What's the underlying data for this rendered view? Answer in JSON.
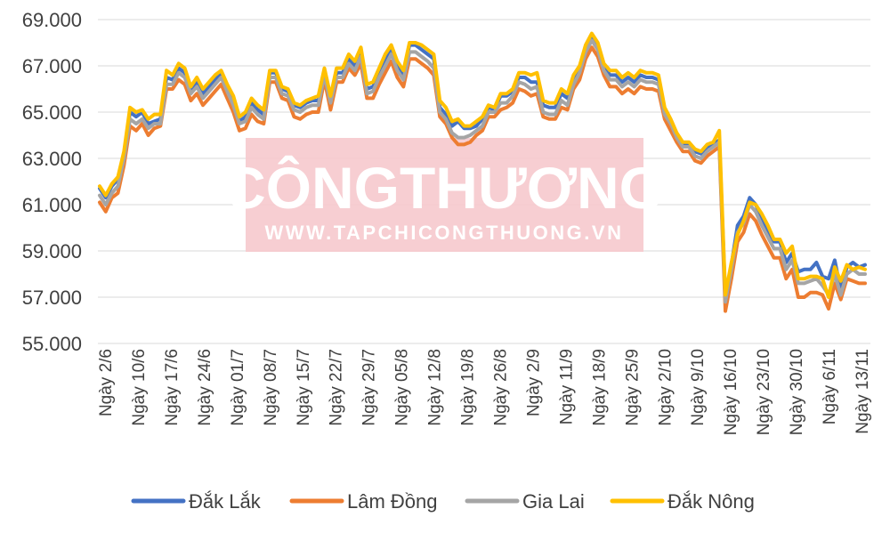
{
  "chart_data": {
    "type": "line",
    "title": "",
    "xlabel": "",
    "ylabel": "",
    "ylim": [
      55000,
      69000
    ],
    "y_ticks": [
      "55.000",
      "57.000",
      "59.000",
      "61.000",
      "63.000",
      "65.000",
      "67.000",
      "69.000"
    ],
    "x_tick_labels": [
      "Ngày 2/6",
      "Ngày 10/6",
      "Ngày 17/6",
      "Ngày 24/6",
      "Ngày 01/7",
      "Ngày 08/7",
      "Ngày 15/7",
      "Ngày 22/7",
      "Ngày 29/7",
      "Ngày 05/8",
      "Ngày 12/8",
      "Ngày 19/8",
      "Ngày 26/8",
      "Ngày 2/9",
      "Ngày 11/9",
      "Ngày 18/9",
      "Ngày 25/9",
      "Ngày 2/10",
      "Ngày 9/10",
      "Ngày 16/10",
      "Ngày 23/10",
      "Ngày 30/10",
      "Ngày 6/11",
      "Ngày 13/11"
    ],
    "grid": "horizontal",
    "legend_position": "bottom",
    "series": [
      {
        "name": "Đắk Lắk",
        "color": "#4472c4",
        "values": [
          61700,
          61300,
          61800,
          62100,
          63200,
          65000,
          64800,
          65000,
          64500,
          64600,
          64700,
          66500,
          66400,
          66900,
          66700,
          66000,
          66300,
          65800,
          66100,
          66400,
          66700,
          66100,
          65500,
          64600,
          64800,
          65400,
          65100,
          64900,
          66700,
          66700,
          66000,
          65900,
          65300,
          65200,
          65400,
          65500,
          65500,
          66800,
          65600,
          66700,
          66700,
          67300,
          67000,
          67600,
          66000,
          66100,
          66700,
          67300,
          67800,
          67000,
          66600,
          67900,
          67900,
          67700,
          67500,
          67300,
          65200,
          64900,
          64400,
          64600,
          64300,
          64300,
          64400,
          64700,
          65200,
          65100,
          65700,
          65700,
          65900,
          66500,
          66500,
          66300,
          66300,
          65300,
          65200,
          65200,
          65800,
          65600,
          66500,
          66900,
          67800,
          68300,
          67900,
          67000,
          66600,
          66600,
          66300,
          66500,
          66300,
          66600,
          66500,
          66500,
          66400,
          65000,
          64600,
          64000,
          63600,
          63600,
          63300,
          63200,
          63500,
          63600,
          63800,
          57000,
          58400,
          60100,
          60500,
          61300,
          61000,
          60400,
          59900,
          59400,
          59400,
          58500,
          58900,
          58100,
          58200,
          58200,
          58500,
          57900,
          57800,
          58600,
          57300,
          58300,
          58500,
          58300,
          58400
        ]
      },
      {
        "name": "Lâm Đồng",
        "color": "#ed7d31",
        "values": [
          61100,
          60700,
          61300,
          61500,
          62700,
          64400,
          64200,
          64500,
          64000,
          64300,
          64400,
          66000,
          66000,
          66400,
          66200,
          65500,
          65800,
          65300,
          65600,
          65900,
          66200,
          65600,
          65000,
          64200,
          64300,
          64900,
          64600,
          64500,
          66300,
          66300,
          65600,
          65500,
          64800,
          64700,
          64900,
          65000,
          65000,
          66400,
          65100,
          66300,
          66300,
          66900,
          66600,
          67100,
          65600,
          65600,
          66200,
          66700,
          67200,
          66500,
          66100,
          67300,
          67300,
          67100,
          66900,
          66600,
          64800,
          64500,
          63900,
          63600,
          63600,
          63700,
          64000,
          64200,
          64800,
          64800,
          65100,
          65200,
          65400,
          66000,
          65900,
          65700,
          65800,
          64800,
          64700,
          64700,
          65200,
          65100,
          66000,
          66400,
          67300,
          67800,
          67400,
          66600,
          66100,
          66100,
          65800,
          66000,
          65800,
          66100,
          66000,
          66000,
          65900,
          64700,
          64200,
          63700,
          63300,
          63300,
          62900,
          62800,
          63100,
          63300,
          63500,
          56400,
          57800,
          59400,
          59800,
          60600,
          60300,
          59700,
          59200,
          58700,
          58700,
          57800,
          58200,
          57000,
          57000,
          57200,
          57200,
          57100,
          56500,
          57600,
          56900,
          57800,
          57700,
          57600,
          57600
        ]
      },
      {
        "name": "Gia Lai",
        "color": "#a5a5a5",
        "values": [
          61400,
          61000,
          61500,
          61800,
          63000,
          64700,
          64500,
          64700,
          64300,
          64500,
          64500,
          66200,
          66200,
          66700,
          66500,
          65800,
          66100,
          65600,
          65900,
          66200,
          66500,
          65900,
          65300,
          64500,
          64600,
          65200,
          64900,
          64700,
          66500,
          66500,
          65800,
          65700,
          65100,
          65000,
          65200,
          65300,
          65300,
          66600,
          65400,
          66500,
          66500,
          67100,
          66800,
          67400,
          65800,
          65900,
          66500,
          67000,
          67500,
          66800,
          66400,
          67600,
          67600,
          67400,
          67200,
          66900,
          65000,
          64700,
          64100,
          63900,
          63900,
          64000,
          64200,
          64400,
          65000,
          65000,
          65400,
          65400,
          65700,
          66300,
          66200,
          66000,
          66100,
          65000,
          64900,
          64900,
          65500,
          65300,
          66200,
          66700,
          67600,
          68100,
          67700,
          66800,
          66400,
          66400,
          66100,
          66300,
          66100,
          66400,
          66300,
          66300,
          66200,
          64900,
          64500,
          63900,
          63500,
          63500,
          63100,
          63000,
          63300,
          63500,
          63700,
          56800,
          58200,
          59800,
          60200,
          61000,
          60700,
          60100,
          59600,
          59100,
          59100,
          58200,
          58600,
          57600,
          57600,
          57700,
          57800,
          57500,
          57100,
          58000,
          57100,
          58000,
          58200,
          58000,
          58000
        ]
      },
      {
        "name": "Đắk Nông",
        "color": "#ffc000",
        "values": [
          61800,
          61400,
          61900,
          62200,
          63300,
          65200,
          65000,
          65100,
          64700,
          64900,
          64900,
          66800,
          66600,
          67100,
          66900,
          66100,
          66500,
          66000,
          66300,
          66600,
          66800,
          66200,
          65700,
          64800,
          65000,
          65600,
          65300,
          65100,
          66800,
          66800,
          66100,
          66000,
          65400,
          65300,
          65500,
          65600,
          65700,
          66900,
          65700,
          66900,
          66900,
          67500,
          67200,
          67800,
          66200,
          66300,
          66900,
          67500,
          67900,
          67200,
          66800,
          68000,
          68000,
          67900,
          67700,
          67500,
          65500,
          65200,
          64600,
          64700,
          64400,
          64400,
          64600,
          64800,
          65300,
          65200,
          65800,
          65800,
          66000,
          66700,
          66700,
          66600,
          66700,
          65500,
          65400,
          65400,
          66000,
          65800,
          66600,
          67000,
          67900,
          68400,
          68000,
          67100,
          66800,
          66800,
          66500,
          66700,
          66500,
          66800,
          66700,
          66700,
          66600,
          65200,
          64700,
          64100,
          63700,
          63700,
          63400,
          63300,
          63600,
          63700,
          64200,
          57100,
          58500,
          59700,
          60300,
          61100,
          61000,
          60600,
          60100,
          59500,
          59500,
          58900,
          59200,
          57800,
          57800,
          57900,
          57900,
          57800,
          57000,
          58300,
          57700,
          58400,
          58200,
          58300,
          58200
        ]
      }
    ],
    "watermark": {
      "main": "CÔNGTHƯƠNG",
      "url": "WWW.TAPCHICONGTHUONG.VN"
    }
  }
}
